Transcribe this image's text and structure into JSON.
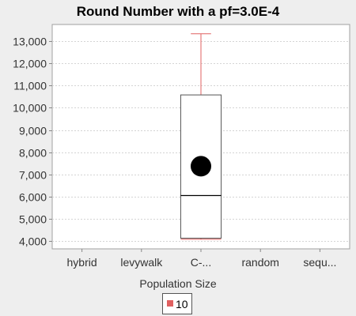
{
  "chart_data": {
    "type": "box",
    "title": "Round Number with a pf=3.0E-4",
    "xlabel": "Population Size",
    "ylabel": "",
    "categories": [
      "hybrid",
      "levywalk",
      "C-...",
      "random",
      "sequ..."
    ],
    "y_ticks": [
      4000,
      5000,
      6000,
      7000,
      8000,
      9000,
      10000,
      11000,
      12000,
      13000
    ],
    "y_tick_labels": [
      "4,000",
      "5,000",
      "6,000",
      "7,000",
      "8,000",
      "9,000",
      "10,000",
      "11,000",
      "12,000",
      "13,000"
    ],
    "ylim": [
      3650,
      13750
    ],
    "grid": true,
    "legend_position": "bottom",
    "series": [
      {
        "name": "10",
        "color": "#e06060",
        "boxes": [
          null,
          null,
          {
            "whisker_low": 4080,
            "q1": 4130,
            "median": 6050,
            "q3": 10580,
            "whisker_high": 13330,
            "mean": 7370
          },
          null,
          null
        ]
      }
    ]
  }
}
